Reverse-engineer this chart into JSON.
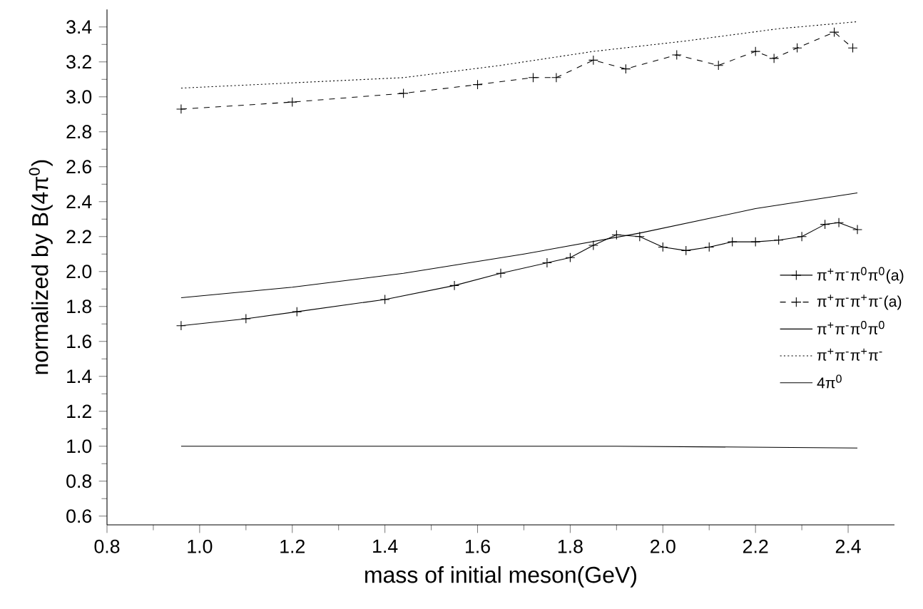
{
  "chart_data": {
    "type": "line",
    "xlabel": "mass of initial meson(GeV)",
    "ylabel": "normalized by B(4π$^{0}$)",
    "xlim": [
      0.8,
      2.5
    ],
    "ylim": [
      0.55,
      3.5
    ],
    "xticks": [
      {
        "value": 0.8,
        "label": "0.8"
      },
      {
        "value": 1.0,
        "label": "1.0"
      },
      {
        "value": 1.2,
        "label": "1.2"
      },
      {
        "value": 1.4,
        "label": "1.4"
      },
      {
        "value": 1.6,
        "label": "1.6"
      },
      {
        "value": 1.8,
        "label": "1.8"
      },
      {
        "value": 2.0,
        "label": "2.0"
      },
      {
        "value": 2.2,
        "label": "2.2"
      },
      {
        "value": 2.4,
        "label": "2.4"
      }
    ],
    "yticks": [
      {
        "value": 0.6,
        "label": "0.6"
      },
      {
        "value": 0.8,
        "label": "0.8"
      },
      {
        "value": 1.0,
        "label": "1.0"
      },
      {
        "value": 1.2,
        "label": "1.2"
      },
      {
        "value": 1.4,
        "label": "1.4"
      },
      {
        "value": 1.6,
        "label": "1.6"
      },
      {
        "value": 1.8,
        "label": "1.8"
      },
      {
        "value": 2.0,
        "label": "2.0"
      },
      {
        "value": 2.2,
        "label": "2.2"
      },
      {
        "value": 2.4,
        "label": "2.4"
      },
      {
        "value": 2.6,
        "label": "2.6"
      },
      {
        "value": 2.8,
        "label": "2.8"
      },
      {
        "value": 3.0,
        "label": "3.0"
      },
      {
        "value": 3.2,
        "label": "3.2"
      },
      {
        "value": 3.4,
        "label": "3.4"
      }
    ],
    "grid": false,
    "legend": "right",
    "series": [
      {
        "name": "π$^{+}$π$^{-}$π$^{0}$π$^{0}$(a)",
        "color": "#000000",
        "marker": "cross",
        "line_style": "solid",
        "x": [
          0.96,
          1.1,
          1.21,
          1.4,
          1.55,
          1.65,
          1.75,
          1.8,
          1.85,
          1.9,
          1.95,
          2.0,
          2.05,
          2.1,
          2.15,
          2.2,
          2.25,
          2.3,
          2.35,
          2.38,
          2.42
        ],
        "values": [
          1.69,
          1.73,
          1.77,
          1.84,
          1.92,
          1.99,
          2.05,
          2.08,
          2.15,
          2.21,
          2.2,
          2.14,
          2.12,
          2.14,
          2.17,
          2.17,
          2.18,
          2.2,
          2.27,
          2.28,
          2.24
        ]
      },
      {
        "name": "π$^{+}$π$^{-}$π$^{+}$π$^{-}$(a)",
        "color": "#000000",
        "marker": "cross",
        "line_style": "dashed",
        "x": [
          0.96,
          1.2,
          1.44,
          1.6,
          1.72,
          1.77,
          1.85,
          1.92,
          2.03,
          2.12,
          2.2,
          2.24,
          2.29,
          2.37,
          2.41
        ],
        "values": [
          2.93,
          2.97,
          3.02,
          3.07,
          3.11,
          3.11,
          3.21,
          3.16,
          3.24,
          3.18,
          3.26,
          3.22,
          3.28,
          3.37,
          3.28
        ]
      },
      {
        "name": "π$^{+}$π$^{-}$π$^{0}$π$^{0}$",
        "color": "#000000",
        "marker": "none",
        "line_style": "solid",
        "x": [
          0.96,
          1.2,
          1.44,
          1.7,
          1.95,
          2.2,
          2.42
        ],
        "values": [
          1.85,
          1.91,
          1.99,
          2.1,
          2.22,
          2.36,
          2.45
        ]
      },
      {
        "name": "π$^{+}$π$^{-}$π$^{+}$π$^{-}$",
        "color": "#000000",
        "marker": "none",
        "line_style": "dotted",
        "x": [
          0.96,
          1.2,
          1.44,
          1.65,
          1.85,
          2.05,
          2.25,
          2.42
        ],
        "values": [
          3.05,
          3.08,
          3.11,
          3.18,
          3.26,
          3.32,
          3.39,
          3.43
        ]
      },
      {
        "name": "4π$^{0}$",
        "color": "#000000",
        "marker": "none",
        "line_style": "solid",
        "x": [
          0.96,
          1.9,
          2.42
        ],
        "values": [
          1.0,
          1.0,
          0.99
        ]
      }
    ]
  }
}
